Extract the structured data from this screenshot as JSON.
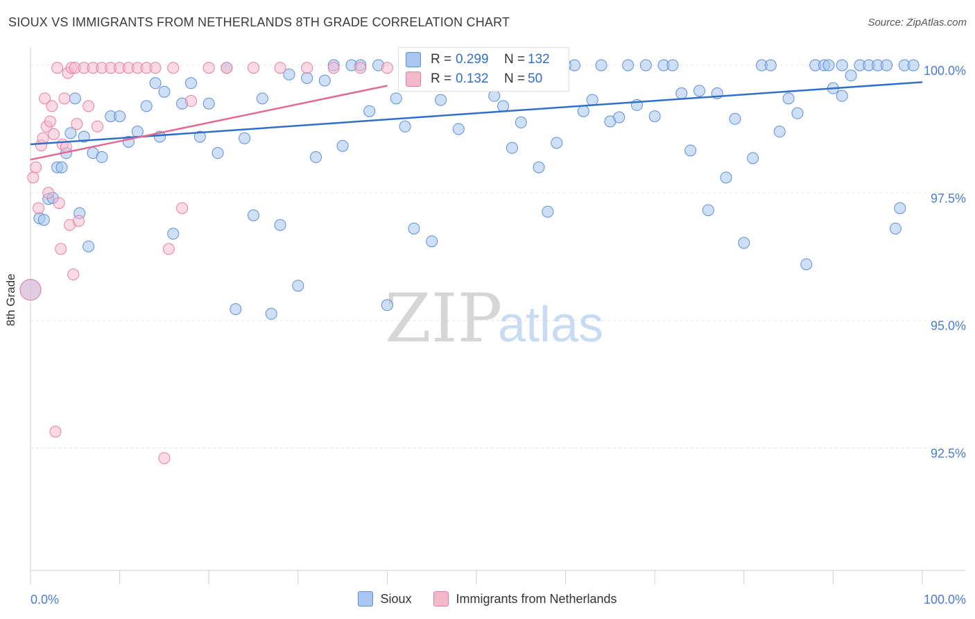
{
  "title": "SIOUX VS IMMIGRANTS FROM NETHERLANDS 8TH GRADE CORRELATION CHART",
  "source": "Source: ZipAtlas.com",
  "watermark": {
    "zip": "ZIP",
    "atlas": "atlas"
  },
  "stats": {
    "r_label": "R =",
    "n_label": "N =",
    "series1": {
      "r": "0.299",
      "n": "132"
    },
    "series2": {
      "r": "0.132",
      "n": "50"
    }
  },
  "legend": {
    "series1": "Sioux",
    "series2": "Immigrants from Netherlands"
  },
  "colors": {
    "blue": "#5b8ed6",
    "blue_fill": "#a8c6ef",
    "blue_line": "#2f6fcc",
    "pink": "#e87ea0",
    "pink_fill": "#f5b8cb",
    "pink_line": "#e26a92",
    "tick_label": "#4a7bd0"
  },
  "chart_data": {
    "type": "scatter",
    "title": "SIOUX VS IMMIGRANTS FROM NETHERLANDS 8TH GRADE CORRELATION CHART",
    "xlabel": "",
    "ylabel": "8th Grade",
    "xlim": [
      0,
      100
    ],
    "ylim": [
      90.1,
      100.3
    ],
    "x_tick_labels": [
      "0.0%",
      "100.0%"
    ],
    "y_ticks": [
      92.5,
      95.0,
      97.5,
      100.0
    ],
    "y_tick_labels": [
      "92.5%",
      "95.0%",
      "97.5%",
      "100.0%"
    ],
    "grid": true,
    "legend_position": "bottom",
    "series": [
      {
        "name": "Sioux",
        "trendline": [
          [
            0,
            98.45
          ],
          [
            100,
            99.67
          ]
        ],
        "points": [
          [
            0,
            95.6
          ],
          [
            1,
            97.0
          ],
          [
            1.5,
            96.97
          ],
          [
            2,
            97.38
          ],
          [
            2.5,
            97.4
          ],
          [
            3,
            98.0
          ],
          [
            3.5,
            98.0
          ],
          [
            4,
            98.28
          ],
          [
            4.5,
            98.67
          ],
          [
            5,
            99.35
          ],
          [
            5.5,
            97.1
          ],
          [
            6,
            98.6
          ],
          [
            6.5,
            96.45
          ],
          [
            7,
            98.28
          ],
          [
            8,
            98.2
          ],
          [
            9,
            99.0
          ],
          [
            10,
            99.0
          ],
          [
            11,
            98.5
          ],
          [
            12,
            98.7
          ],
          [
            13,
            99.2
          ],
          [
            14,
            99.65
          ],
          [
            14.5,
            98.6
          ],
          [
            15,
            99.48
          ],
          [
            16,
            96.7
          ],
          [
            17,
            99.25
          ],
          [
            18,
            99.65
          ],
          [
            19,
            98.6
          ],
          [
            20,
            99.25
          ],
          [
            21,
            98.28
          ],
          [
            22,
            99.95
          ],
          [
            23,
            95.22
          ],
          [
            24,
            98.57
          ],
          [
            25,
            97.06
          ],
          [
            26,
            99.35
          ],
          [
            27,
            95.13
          ],
          [
            28,
            96.87
          ],
          [
            29,
            99.82
          ],
          [
            30,
            95.68
          ],
          [
            31,
            99.75
          ],
          [
            32,
            98.2
          ],
          [
            33,
            99.7
          ],
          [
            34,
            100
          ],
          [
            35,
            98.42
          ],
          [
            36,
            100
          ],
          [
            37,
            100
          ],
          [
            38,
            99.1
          ],
          [
            39,
            100
          ],
          [
            40,
            95.3
          ],
          [
            41,
            99.35
          ],
          [
            42,
            98.8
          ],
          [
            43,
            96.8
          ],
          [
            44,
            100
          ],
          [
            45,
            96.55
          ],
          [
            46,
            99.32
          ],
          [
            47,
            100
          ],
          [
            48,
            98.75
          ],
          [
            49,
            100
          ],
          [
            50,
            100
          ],
          [
            51,
            100
          ],
          [
            52,
            99.4
          ],
          [
            53,
            99.2
          ],
          [
            54,
            98.38
          ],
          [
            55,
            98.88
          ],
          [
            56,
            100
          ],
          [
            57,
            98.0
          ],
          [
            58,
            97.13
          ],
          [
            59,
            98.48
          ],
          [
            60,
            100
          ],
          [
            61,
            100
          ],
          [
            62,
            99.1
          ],
          [
            63,
            99.32
          ],
          [
            64,
            100
          ],
          [
            65,
            98.9
          ],
          [
            66,
            98.98
          ],
          [
            67,
            100
          ],
          [
            68,
            99.22
          ],
          [
            69,
            100
          ],
          [
            70,
            99.0
          ],
          [
            71,
            100
          ],
          [
            72,
            100
          ],
          [
            73,
            99.45
          ],
          [
            74,
            98.33
          ],
          [
            75,
            99.5
          ],
          [
            76,
            97.16
          ],
          [
            77,
            99.45
          ],
          [
            78,
            97.8
          ],
          [
            79,
            98.95
          ],
          [
            80,
            96.52
          ],
          [
            81,
            98.18
          ],
          [
            82,
            100
          ],
          [
            83,
            100
          ],
          [
            84,
            98.7
          ],
          [
            85,
            99.35
          ],
          [
            86,
            99.06
          ],
          [
            87,
            96.1
          ],
          [
            88,
            100
          ],
          [
            89,
            100
          ],
          [
            90,
            99.55
          ],
          [
            91,
            99.4
          ],
          [
            92,
            99.8
          ],
          [
            93,
            100
          ],
          [
            94,
            100
          ],
          [
            95,
            100
          ],
          [
            96,
            100
          ],
          [
            97,
            96.8
          ],
          [
            97.5,
            97.2
          ],
          [
            98,
            100
          ],
          [
            99,
            100
          ],
          [
            91,
            100
          ],
          [
            89.5,
            100
          ]
        ]
      },
      {
        "name": "Immigrants from Netherlands",
        "trendline": [
          [
            0,
            98.15
          ],
          [
            40,
            99.6
          ]
        ],
        "points": [
          [
            0,
            95.6
          ],
          [
            0.3,
            97.8
          ],
          [
            0.6,
            98.0
          ],
          [
            0.9,
            97.2
          ],
          [
            1.2,
            98.43
          ],
          [
            1.4,
            98.57
          ],
          [
            1.6,
            99.35
          ],
          [
            1.8,
            98.8
          ],
          [
            2.0,
            97.5
          ],
          [
            2.2,
            98.9
          ],
          [
            2.4,
            99.2
          ],
          [
            2.6,
            98.65
          ],
          [
            2.8,
            92.82
          ],
          [
            3.0,
            99.95
          ],
          [
            3.2,
            97.3
          ],
          [
            3.4,
            96.4
          ],
          [
            3.6,
            98.45
          ],
          [
            3.8,
            99.35
          ],
          [
            4.0,
            98.4
          ],
          [
            4.2,
            99.85
          ],
          [
            4.4,
            96.87
          ],
          [
            4.6,
            99.95
          ],
          [
            4.8,
            95.9
          ],
          [
            5.0,
            99.95
          ],
          [
            5.2,
            98.85
          ],
          [
            5.4,
            96.95
          ],
          [
            6.0,
            99.95
          ],
          [
            6.5,
            99.2
          ],
          [
            7,
            99.95
          ],
          [
            7.5,
            98.8
          ],
          [
            8,
            99.95
          ],
          [
            9,
            99.95
          ],
          [
            10,
            99.95
          ],
          [
            11,
            99.95
          ],
          [
            12,
            99.95
          ],
          [
            13,
            99.95
          ],
          [
            14,
            99.95
          ],
          [
            15,
            92.3
          ],
          [
            15.5,
            96.4
          ],
          [
            16,
            99.95
          ],
          [
            17,
            97.2
          ],
          [
            18,
            99.3
          ],
          [
            20,
            99.95
          ],
          [
            22,
            99.95
          ],
          [
            25,
            99.95
          ],
          [
            28,
            99.95
          ],
          [
            31,
            99.95
          ],
          [
            34,
            99.95
          ],
          [
            37,
            99.95
          ],
          [
            40,
            99.95
          ]
        ]
      }
    ]
  }
}
